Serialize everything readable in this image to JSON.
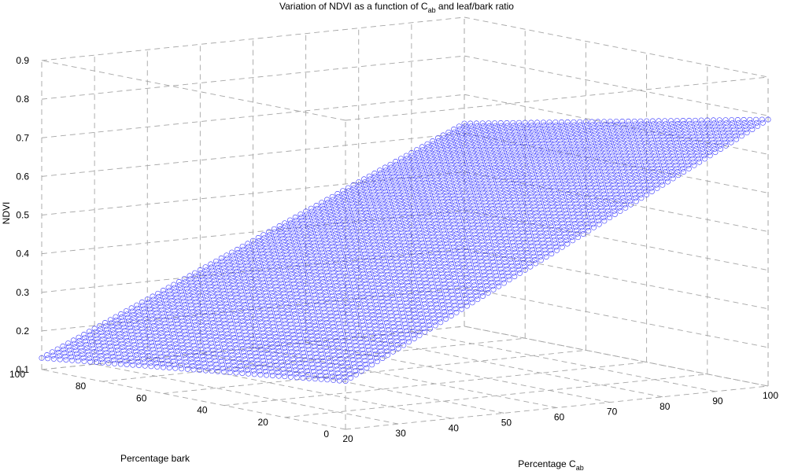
{
  "chart_data": {
    "type": "scatter",
    "projection": "3d",
    "title": "Variation of NDVI as a function of C",
    "title_subscript": "ab",
    "title_suffix": " and leaf/bark ratio",
    "xlabel": "Percentage C",
    "xlabel_subscript": "ab",
    "ylabel": "Percentage bark",
    "zlabel": "NDVI",
    "x_ticks": [
      "20",
      "30",
      "40",
      "50",
      "60",
      "70",
      "80",
      "90",
      "100"
    ],
    "y_ticks": [
      "0",
      "20",
      "40",
      "60",
      "80",
      "100"
    ],
    "z_ticks": [
      "0.1",
      "0.2",
      "0.3",
      "0.4",
      "0.5",
      "0.6",
      "0.7",
      "0.8",
      "0.9"
    ],
    "xlim": [
      20,
      100
    ],
    "ylim": [
      0,
      100
    ],
    "zlim": [
      0.1,
      0.9
    ],
    "grid": true,
    "marker": "circle",
    "color": "#0000ff",
    "surface_corners": [
      {
        "x": 20,
        "y": 0,
        "z": 0.225
      },
      {
        "x": 100,
        "y": 0,
        "z": 0.79
      },
      {
        "x": 100,
        "y": 100,
        "z": 0.625
      },
      {
        "x": 20,
        "y": 100,
        "z": 0.13
      }
    ]
  }
}
